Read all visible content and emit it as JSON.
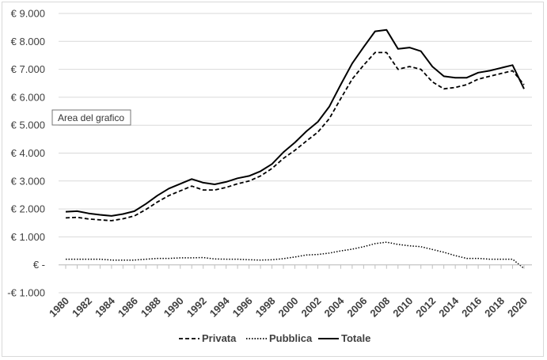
{
  "chart_data": {
    "type": "line",
    "x": [
      1980,
      1981,
      1982,
      1983,
      1984,
      1985,
      1986,
      1987,
      1988,
      1989,
      1990,
      1991,
      1992,
      1993,
      1994,
      1995,
      1996,
      1997,
      1998,
      1999,
      2000,
      2001,
      2002,
      2003,
      2004,
      2005,
      2006,
      2007,
      2008,
      2009,
      2010,
      2011,
      2012,
      2013,
      2014,
      2015,
      2016,
      2017,
      2018,
      2019,
      2020
    ],
    "x_tick_labels": [
      "1980",
      "1982",
      "1984",
      "1986",
      "1988",
      "1990",
      "1992",
      "1994",
      "1996",
      "1998",
      "2000",
      "2002",
      "2004",
      "2006",
      "2008",
      "2010",
      "2012",
      "2014",
      "2016",
      "2018",
      "2020"
    ],
    "y_ticks": [
      -1000,
      0,
      1000,
      2000,
      3000,
      4000,
      5000,
      6000,
      7000,
      8000,
      9000
    ],
    "y_tick_labels": [
      "-€ 1.000",
      "€ -",
      "€ 1.000",
      "€ 2.000",
      "€ 3.000",
      "€ 4.000",
      "€ 5.000",
      "€ 6.000",
      "€ 7.000",
      "€ 8.000",
      "€ 9.000"
    ],
    "ylim": [
      -1000,
      9000
    ],
    "grid": true,
    "legend_position": "bottom",
    "series": [
      {
        "name": "Privata",
        "style": "dashed",
        "color": "#000000",
        "values": [
          1680,
          1700,
          1640,
          1610,
          1580,
          1650,
          1750,
          1980,
          2250,
          2480,
          2650,
          2820,
          2680,
          2680,
          2770,
          2900,
          3000,
          3180,
          3450,
          3810,
          4100,
          4430,
          4750,
          5230,
          5950,
          6650,
          7150,
          7600,
          7600,
          7000,
          7100,
          7000,
          6550,
          6300,
          6350,
          6450,
          6650,
          6750,
          6850,
          6950,
          6450
        ]
      },
      {
        "name": "Pubblica",
        "style": "dotted",
        "color": "#000000",
        "values": [
          200,
          200,
          200,
          200,
          170,
          170,
          170,
          200,
          230,
          230,
          250,
          250,
          260,
          210,
          200,
          200,
          180,
          170,
          180,
          220,
          280,
          350,
          370,
          420,
          500,
          560,
          650,
          760,
          810,
          730,
          680,
          650,
          550,
          450,
          330,
          230,
          230,
          200,
          200,
          200,
          -130
        ]
      },
      {
        "name": "Totale",
        "style": "solid",
        "color": "#000000",
        "values": [
          1900,
          1920,
          1840,
          1790,
          1750,
          1820,
          1920,
          2180,
          2480,
          2730,
          2900,
          3070,
          2940,
          2880,
          2970,
          3100,
          3180,
          3350,
          3610,
          4030,
          4380,
          4780,
          5120,
          5660,
          6450,
          7210,
          7800,
          8360,
          8410,
          7730,
          7780,
          7650,
          7100,
          6750,
          6700,
          6700,
          6880,
          6950,
          7050,
          7150,
          6300
        ]
      }
    ]
  },
  "tooltip": {
    "text": "Area del grafico"
  }
}
